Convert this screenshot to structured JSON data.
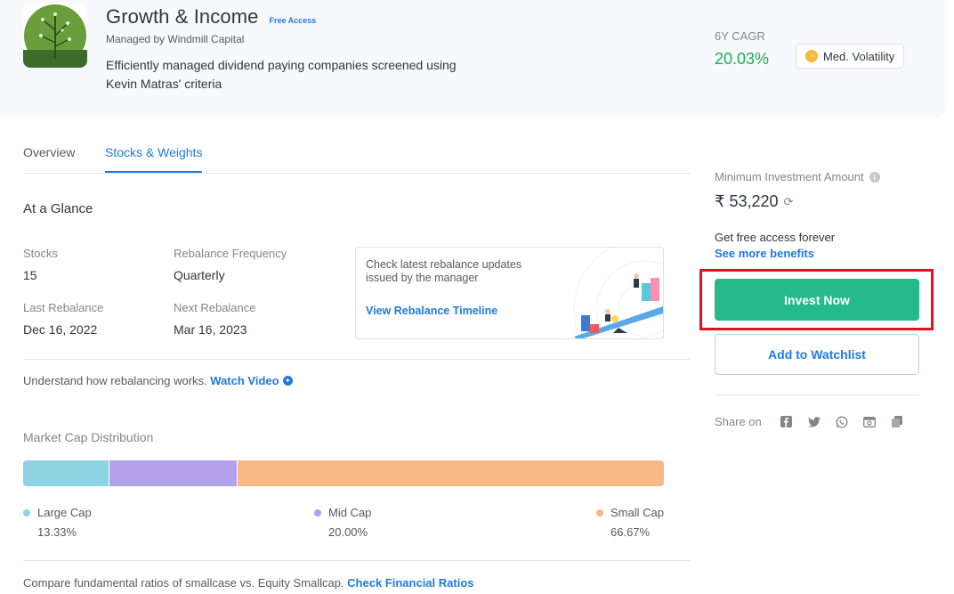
{
  "header": {
    "title": "Growth & Income",
    "badge": "Free Access",
    "managed_by": "Managed by Windmill Capital",
    "description": "Efficiently managed dividend paying companies screened using Kevin Matras' criteria",
    "cagr_label": "6Y CAGR",
    "cagr_value": "20.03%",
    "volatility": "Med. Volatility",
    "logo_icon": "plant-logo-icon"
  },
  "tabs": [
    {
      "label": "Overview",
      "active": false
    },
    {
      "label": "Stocks & Weights",
      "active": true
    }
  ],
  "glance": {
    "title": "At a Glance",
    "stocks_label": "Stocks",
    "stocks_value": "15",
    "frequency_label": "Rebalance Frequency",
    "frequency_value": "Quarterly",
    "last_label": "Last Rebalance",
    "last_value": "Dec 16, 2022",
    "next_label": "Next Rebalance",
    "next_value": "Mar 16, 2023"
  },
  "rebalance_card": {
    "text": "Check latest rebalance updates issued by the manager",
    "link": "View Rebalance Timeline"
  },
  "understand": {
    "text": "Understand how rebalancing works. ",
    "link": "Watch Video"
  },
  "market_cap": {
    "title": "Market Cap Distribution",
    "segments": [
      {
        "name": "Large Cap",
        "value": "13.33%",
        "share": 13.33,
        "color": "#8ed3e3"
      },
      {
        "name": "Mid Cap",
        "value": "20.00%",
        "share": 20.0,
        "color": "#b3a1ec"
      },
      {
        "name": "Small Cap",
        "value": "66.67%",
        "share": 66.67,
        "color": "#f9b886"
      }
    ]
  },
  "compare": {
    "text": "Compare fundamental ratios of smallcase vs. Equity Smallcap. ",
    "link": "Check Financial Ratios"
  },
  "sidebar": {
    "min_label": "Minimum Investment Amount",
    "min_value": "₹ 53,220",
    "free_text": "Get free access forever",
    "benefits_link": "See more benefits",
    "invest_label": "Invest Now",
    "watchlist_label": "Add to Watchlist",
    "share_label": "Share on",
    "share_icons": [
      "facebook-icon",
      "twitter-icon",
      "whatsapp-icon",
      "email-icon",
      "copy-icon"
    ]
  },
  "colors": {
    "accent": "#1f7ae0",
    "invest_button": "#26b98a",
    "cagr_green": "#19af55",
    "highlight_red": "#e0121e"
  }
}
